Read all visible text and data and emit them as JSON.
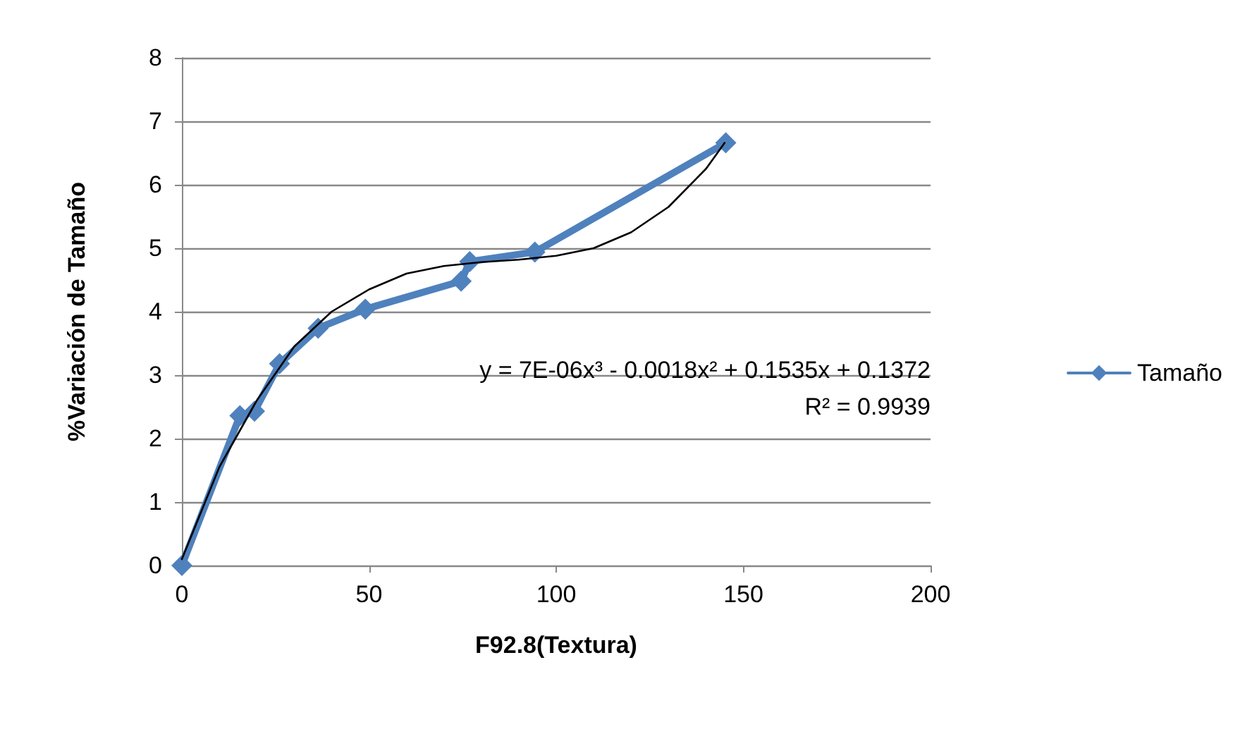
{
  "chart_data": {
    "type": "line",
    "xlabel": "F92.8(Textura)",
    "ylabel": "%Variación de Tamaño",
    "xlim": [
      0,
      200
    ],
    "xticks": [
      0,
      50,
      100,
      150,
      200
    ],
    "ylim": [
      0,
      8
    ],
    "yticks": [
      0,
      1,
      2,
      3,
      4,
      5,
      6,
      7,
      8
    ],
    "grid": "y",
    "legend": "right",
    "marker": "diamond",
    "line_style": "solid",
    "series": [
      {
        "name": "Tamaño",
        "color": "#4f81bd",
        "x": [
          0,
          15.5,
          19.4,
          26.1,
          36.4,
          49.0,
          74.6,
          76.9,
          94.3,
          145.3
        ],
        "values": [
          0,
          2.36,
          2.43,
          3.18,
          3.74,
          4.04,
          4.48,
          4.79,
          4.94,
          6.66
        ]
      },
      {
        "type": "line",
        "color": "#000000",
        "marker": "none",
        "x": [
          0,
          10,
          20,
          30,
          40,
          50,
          60,
          70,
          80,
          90,
          100,
          110,
          120,
          130,
          140,
          145
        ],
        "values": [
          0.1,
          1.55,
          2.6,
          3.45,
          4.0,
          4.35,
          4.6,
          4.72,
          4.78,
          4.82,
          4.88,
          5.0,
          5.25,
          5.65,
          6.25,
          6.66
        ]
      }
    ],
    "annotations": [
      "y = 7E-06x³ - 0.0018x² + 0.1535x + 0.1372",
      "R² = 0.9939"
    ]
  }
}
